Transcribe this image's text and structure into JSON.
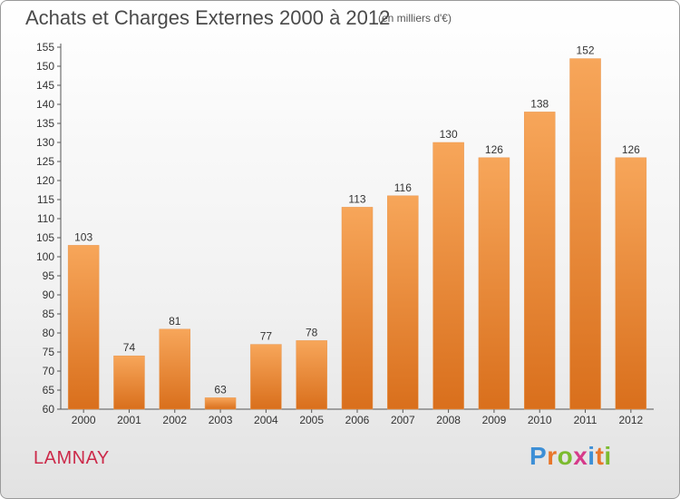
{
  "title": "Achats et Charges Externes 2000 à 2012",
  "unit_label": "(en milliers d'€)",
  "commune": "LAMNAY",
  "logo": {
    "letters": [
      "P",
      "r",
      "o",
      "x",
      "i",
      "t",
      "i"
    ],
    "colors": [
      "#3d8fd6",
      "#e8762a",
      "#7cbb2f",
      "#d63a8a",
      "#3d8fd6",
      "#e8762a",
      "#7cbb2f"
    ]
  },
  "colors": {
    "bar_top": "#f7a65a",
    "bar_bottom": "#d96f1c",
    "title": "#4a4a4a",
    "commune": "#cc2a4a"
  },
  "chart_data": {
    "type": "bar",
    "title": "Achats et Charges Externes 2000 à 2012",
    "categories": [
      "2000",
      "2001",
      "2002",
      "2003",
      "2004",
      "2005",
      "2006",
      "2007",
      "2008",
      "2009",
      "2010",
      "2011",
      "2012"
    ],
    "values": [
      103,
      74,
      81,
      63,
      77,
      78,
      113,
      116,
      130,
      126,
      138,
      152,
      126
    ],
    "ylim": [
      60,
      155
    ],
    "yticks": [
      60,
      65,
      70,
      75,
      80,
      85,
      90,
      95,
      100,
      105,
      110,
      115,
      120,
      125,
      130,
      135,
      140,
      145,
      150,
      155
    ],
    "grid": false,
    "xlabel": "",
    "ylabel": ""
  }
}
